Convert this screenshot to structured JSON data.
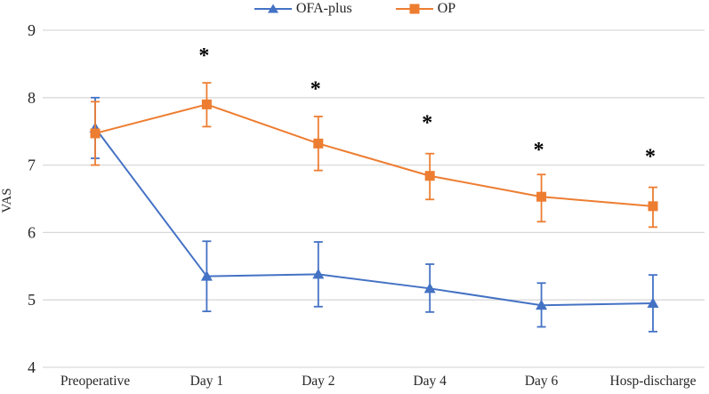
{
  "chart_data": {
    "type": "line",
    "title": "",
    "xlabel": "",
    "ylabel": "VAS",
    "categories": [
      "Preoperative",
      "Day 1",
      "Day 2",
      "Day 4",
      "Day 6",
      "Hosp-discharge"
    ],
    "ylim": [
      4,
      9
    ],
    "yticks": [
      4,
      5,
      6,
      7,
      8,
      9
    ],
    "grid": "horizontal-only",
    "gridline_color": "#d9d9d9",
    "text_color": "#262626",
    "legend_position": "top-center",
    "series": [
      {
        "name": "OFA-plus",
        "color": "#4472c4",
        "marker": "triangle",
        "values": [
          7.55,
          5.35,
          5.38,
          5.17,
          4.92,
          4.95
        ],
        "error_up": [
          0.45,
          0.52,
          0.48,
          0.36,
          0.33,
          0.42
        ],
        "error_down": [
          0.45,
          0.52,
          0.48,
          0.35,
          0.32,
          0.42
        ]
      },
      {
        "name": "OP",
        "color": "#ed7d31",
        "marker": "square",
        "values": [
          7.47,
          7.9,
          7.32,
          6.84,
          6.53,
          6.39
        ],
        "error_up": [
          0.47,
          0.32,
          0.4,
          0.33,
          0.33,
          0.28
        ],
        "error_down": [
          0.47,
          0.33,
          0.4,
          0.35,
          0.37,
          0.31
        ]
      }
    ],
    "annotations": [
      {
        "category_index": 1,
        "y": 8.62,
        "text": "*"
      },
      {
        "category_index": 2,
        "y": 8.12,
        "text": "*"
      },
      {
        "category_index": 3,
        "y": 7.62,
        "text": "*"
      },
      {
        "category_index": 4,
        "y": 7.22,
        "text": "*"
      },
      {
        "category_index": 5,
        "y": 7.12,
        "text": "*"
      }
    ]
  }
}
